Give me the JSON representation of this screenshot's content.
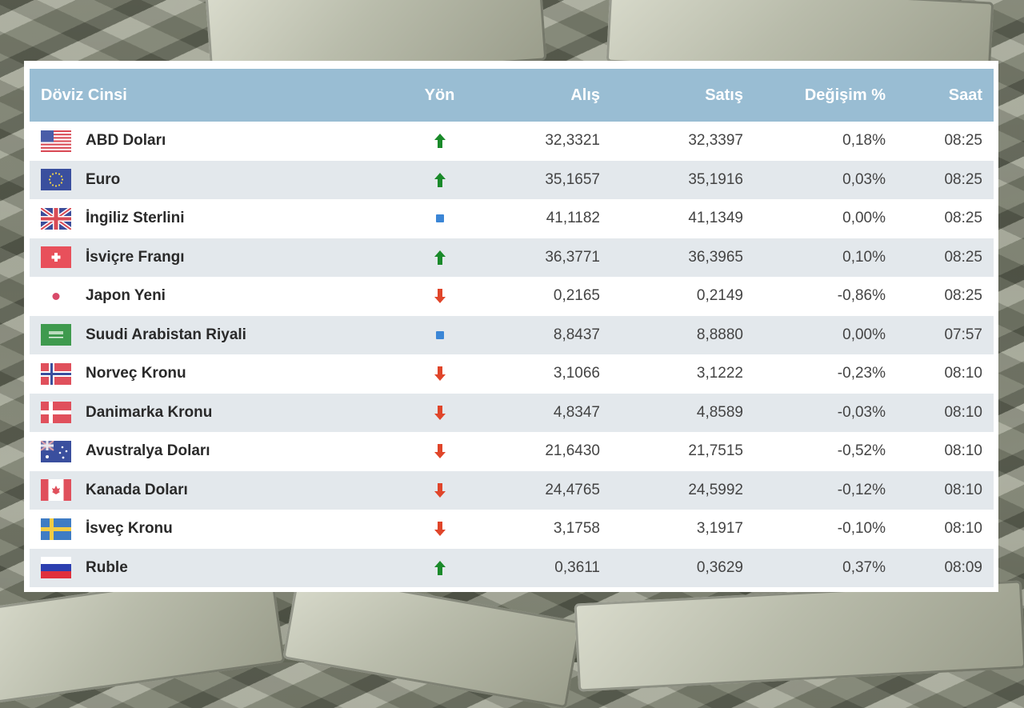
{
  "table": {
    "headers": {
      "currency": "Döviz Cinsi",
      "direction": "Yön",
      "buy": "Alış",
      "sell": "Satış",
      "change": "Değişim %",
      "time": "Saat"
    },
    "rows": [
      {
        "flag": "us-flag-icon",
        "name": "ABD Doları",
        "direction": "up",
        "buy": "32,3321",
        "sell": "32,3397",
        "change": "0,18%",
        "time": "08:25"
      },
      {
        "flag": "eu-flag-icon",
        "name": "Euro",
        "direction": "up",
        "buy": "35,1657",
        "sell": "35,1916",
        "change": "0,03%",
        "time": "08:25"
      },
      {
        "flag": "gb-flag-icon",
        "name": "İngiliz Sterlini",
        "direction": "flat",
        "buy": "41,1182",
        "sell": "41,1349",
        "change": "0,00%",
        "time": "08:25"
      },
      {
        "flag": "ch-flag-icon",
        "name": "İsviçre Frangı",
        "direction": "up",
        "buy": "36,3771",
        "sell": "36,3965",
        "change": "0,10%",
        "time": "08:25"
      },
      {
        "flag": "jp-flag-icon",
        "name": "Japon Yeni",
        "direction": "down",
        "buy": "0,2165",
        "sell": "0,2149",
        "change": "-0,86%",
        "time": "08:25"
      },
      {
        "flag": "sa-flag-icon",
        "name": "Suudi Arabistan Riyali",
        "direction": "flat",
        "buy": "8,8437",
        "sell": "8,8880",
        "change": "0,00%",
        "time": "07:57"
      },
      {
        "flag": "no-flag-icon",
        "name": "Norveç Kronu",
        "direction": "down",
        "buy": "3,1066",
        "sell": "3,1222",
        "change": "-0,23%",
        "time": "08:10"
      },
      {
        "flag": "dk-flag-icon",
        "name": "Danimarka Kronu",
        "direction": "down",
        "buy": "4,8347",
        "sell": "4,8589",
        "change": "-0,03%",
        "time": "08:10"
      },
      {
        "flag": "au-flag-icon",
        "name": "Avustralya Doları",
        "direction": "down",
        "buy": "21,6430",
        "sell": "21,7515",
        "change": "-0,52%",
        "time": "08:10"
      },
      {
        "flag": "ca-flag-icon",
        "name": "Kanada Doları",
        "direction": "down",
        "buy": "24,4765",
        "sell": "24,5992",
        "change": "-0,12%",
        "time": "08:10"
      },
      {
        "flag": "se-flag-icon",
        "name": "İsveç Kronu",
        "direction": "down",
        "buy": "3,1758",
        "sell": "3,1917",
        "change": "-0,10%",
        "time": "08:10"
      },
      {
        "flag": "ru-flag-icon",
        "name": "Ruble",
        "direction": "up",
        "buy": "0,3611",
        "sell": "0,3629",
        "change": "0,37%",
        "time": "08:09"
      }
    ]
  },
  "colors": {
    "header_bg": "#99bdd3",
    "row_alt_bg": "#e3e8ec",
    "up": "#1a8a2a",
    "down": "#e0452a",
    "flat": "#3b86d6"
  }
}
